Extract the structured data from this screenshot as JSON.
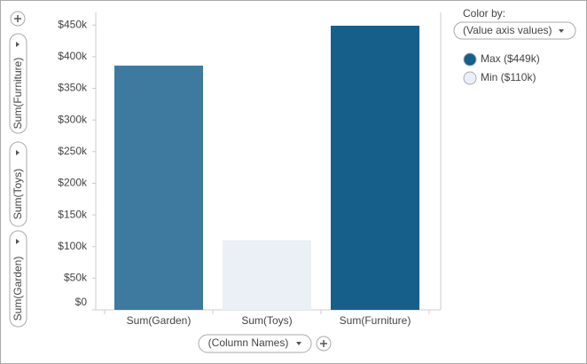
{
  "chart_data": {
    "type": "bar",
    "categories": [
      "Sum(Garden)",
      "Sum(Toys)",
      "Sum(Furniture)"
    ],
    "values": [
      386000,
      110000,
      449000
    ],
    "colors": [
      "#3e7a9f",
      "#ebf0f7",
      "#155f8a"
    ],
    "ylim": [
      0,
      470000
    ],
    "yticks": [
      {
        "value": 0,
        "label": "$0"
      },
      {
        "value": 50000,
        "label": "$50k"
      },
      {
        "value": 100000,
        "label": "$100k"
      },
      {
        "value": 150000,
        "label": "$150k"
      },
      {
        "value": 200000,
        "label": "$200k"
      },
      {
        "value": 250000,
        "label": "$250k"
      },
      {
        "value": 300000,
        "label": "$300k"
      },
      {
        "value": 350000,
        "label": "$350k"
      },
      {
        "value": 400000,
        "label": "$400k"
      },
      {
        "value": 450000,
        "label": "$450k"
      }
    ],
    "grid": false,
    "x_axis_selector": "(Column Names)",
    "y_axis_selectors": [
      "Sum(Furniture)",
      "Sum(Toys)",
      "Sum(Garden)"
    ],
    "legend": {
      "title": "Color by:",
      "selector": "(Value axis values)",
      "items": [
        {
          "label": "Max ($449k)",
          "color": "#155f8a"
        },
        {
          "label": "Min ($110k)",
          "color": "#ebf0f7"
        }
      ]
    }
  }
}
